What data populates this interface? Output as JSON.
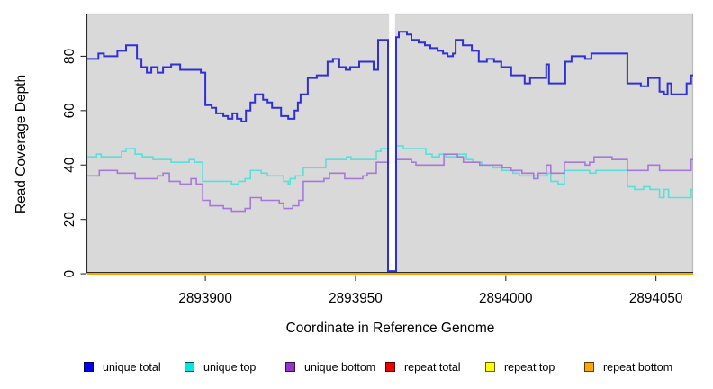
{
  "axes": {
    "ylabel": "Read Coverage Depth",
    "xlabel": "Coordinate in Reference Genome"
  },
  "legend": {
    "items": [
      {
        "label": "unique total",
        "color": "#0000EE"
      },
      {
        "label": "unique top",
        "color": "#00E5E5"
      },
      {
        "label": "unique bottom",
        "color": "#9932CC"
      },
      {
        "label": "repeat total",
        "color": "#EE0000"
      },
      {
        "label": "repeat top",
        "color": "#FFFF00"
      },
      {
        "label": "repeat bottom",
        "color": "#FFA500"
      }
    ]
  },
  "chart_data": {
    "type": "line",
    "subtype": "step-after",
    "title": "",
    "xlabel": "Coordinate in Reference Genome",
    "ylabel": "Read Coverage Depth",
    "xlim": [
      2893860.7,
      2894062.4
    ],
    "ylim": [
      -0.3,
      95.7
    ],
    "x_ticks": [
      2893900,
      2893950,
      2894000,
      2894050
    ],
    "x_tick_labels": [
      "2893900",
      "2893950",
      "2894000",
      "2894050"
    ],
    "y_ticks": [
      0,
      20,
      40,
      60,
      80
    ],
    "y_tick_labels": [
      "0",
      "20",
      "40",
      "60",
      "80"
    ],
    "grid": false,
    "panel_bg": "#d9d9d9",
    "gap_region": {
      "from": 2893960.8,
      "to": 2893963.5,
      "note": "white masked strip, coverage drops to ~0"
    },
    "series": [
      {
        "name": "repeat total",
        "color": "#E00000",
        "width": 2,
        "points": [
          [
            2893860.7,
            0
          ],
          [
            2894062.4,
            0
          ]
        ]
      },
      {
        "name": "repeat top",
        "color": "#FFFF00",
        "width": 2,
        "points": [
          [
            2893860.7,
            0
          ],
          [
            2894062.4,
            0
          ]
        ]
      },
      {
        "name": "repeat bottom",
        "color": "#FFA500",
        "width": 2.2,
        "points": [
          [
            2893860.7,
            0
          ],
          [
            2894062.4,
            0
          ]
        ]
      },
      {
        "name": "unique top",
        "color": "#55E2DA",
        "width": 1.6,
        "points": [
          [
            2893860.7,
            43
          ],
          [
            2893863.8,
            44
          ],
          [
            2893865.3,
            43
          ],
          [
            2893872.1,
            45
          ],
          [
            2893873.6,
            46
          ],
          [
            2893876.6,
            44
          ],
          [
            2893879,
            43
          ],
          [
            2893882.6,
            42
          ],
          [
            2893888.6,
            41
          ],
          [
            2893894.6,
            42
          ],
          [
            2893896.4,
            41
          ],
          [
            2893899.1,
            34
          ],
          [
            2893908.7,
            33
          ],
          [
            2893911.1,
            34
          ],
          [
            2893913.2,
            35
          ],
          [
            2893915,
            38
          ],
          [
            2893918.6,
            37
          ],
          [
            2893920.7,
            36
          ],
          [
            2893926.1,
            34
          ],
          [
            2893927.6,
            33
          ],
          [
            2893928.2,
            35
          ],
          [
            2893930,
            36
          ],
          [
            2893932.6,
            39
          ],
          [
            2893940.1,
            42
          ],
          [
            2893947,
            43
          ],
          [
            2893948.5,
            42
          ],
          [
            2893956.9,
            45
          ],
          [
            2893958.4,
            46
          ],
          [
            2893963.5,
            47
          ],
          [
            2893965.9,
            46
          ],
          [
            2893973.4,
            44
          ],
          [
            2893975.5,
            43
          ],
          [
            2893977.9,
            44
          ],
          [
            2893980,
            43
          ],
          [
            2893983.9,
            44
          ],
          [
            2893986.9,
            42
          ],
          [
            2893989,
            41
          ],
          [
            2893992,
            40
          ],
          [
            2893995.6,
            39
          ],
          [
            2893998.8,
            38
          ],
          [
            2894002.4,
            37
          ],
          [
            2894004.5,
            36
          ],
          [
            2894013.8,
            37
          ],
          [
            2894015,
            34
          ],
          [
            2894017.4,
            33
          ],
          [
            2894019.5,
            38
          ],
          [
            2894027.9,
            37
          ],
          [
            2894030,
            38
          ],
          [
            2894040.5,
            32
          ],
          [
            2894042.9,
            31
          ],
          [
            2894045.9,
            32
          ],
          [
            2894048,
            31
          ],
          [
            2894051.2,
            28
          ],
          [
            2894052.7,
            31
          ],
          [
            2894054.2,
            28
          ],
          [
            2894061.7,
            31
          ]
        ]
      },
      {
        "name": "unique bottom",
        "color": "#A678DC",
        "width": 1.6,
        "points": [
          [
            2893860.7,
            36
          ],
          [
            2893864.7,
            38
          ],
          [
            2893870.7,
            37
          ],
          [
            2893876.6,
            35
          ],
          [
            2893884.1,
            36
          ],
          [
            2893885.9,
            37
          ],
          [
            2893888,
            34
          ],
          [
            2893891.6,
            33
          ],
          [
            2893895.2,
            35
          ],
          [
            2893897,
            33
          ],
          [
            2893899.1,
            27
          ],
          [
            2893901.5,
            25
          ],
          [
            2893906,
            24
          ],
          [
            2893908.7,
            23
          ],
          [
            2893913.2,
            24
          ],
          [
            2893915,
            28
          ],
          [
            2893918.6,
            27
          ],
          [
            2893924.6,
            26
          ],
          [
            2893926.1,
            24
          ],
          [
            2893929.1,
            25
          ],
          [
            2893931.1,
            27
          ],
          [
            2893932.6,
            34
          ],
          [
            2893939.5,
            35
          ],
          [
            2893941.3,
            37
          ],
          [
            2893946.4,
            35
          ],
          [
            2893952.4,
            36
          ],
          [
            2893953.9,
            37
          ],
          [
            2893956.9,
            41
          ],
          [
            2893963.5,
            42
          ],
          [
            2893968.6,
            41
          ],
          [
            2893970.1,
            40
          ],
          [
            2893979.4,
            44
          ],
          [
            2893983.9,
            43
          ],
          [
            2893985.9,
            41
          ],
          [
            2893991.3,
            40
          ],
          [
            2893998.8,
            39
          ],
          [
            2894001.8,
            38
          ],
          [
            2894005.4,
            37
          ],
          [
            2894009.3,
            35
          ],
          [
            2894010.8,
            37
          ],
          [
            2894013.5,
            40
          ],
          [
            2894015,
            37
          ],
          [
            2894019.5,
            41
          ],
          [
            2894026.4,
            40
          ],
          [
            2894027.9,
            41
          ],
          [
            2894029.4,
            43
          ],
          [
            2894035.4,
            42
          ],
          [
            2894040.5,
            38
          ],
          [
            2894047.4,
            40
          ],
          [
            2894051.2,
            38
          ],
          [
            2894061.7,
            42
          ]
        ]
      },
      {
        "name": "unique total",
        "color": "#3030D8",
        "width": 2,
        "points": [
          [
            2893860.7,
            79
          ],
          [
            2893864.4,
            81
          ],
          [
            2893866.2,
            80
          ],
          [
            2893870.7,
            82
          ],
          [
            2893873.6,
            84
          ],
          [
            2893877.2,
            79
          ],
          [
            2893878.7,
            76
          ],
          [
            2893880.5,
            74
          ],
          [
            2893882,
            76
          ],
          [
            2893884.1,
            74
          ],
          [
            2893885.9,
            76
          ],
          [
            2893888.6,
            77
          ],
          [
            2893891.6,
            75
          ],
          [
            2893898.5,
            74
          ],
          [
            2893900,
            62
          ],
          [
            2893902.1,
            61
          ],
          [
            2893903.6,
            59
          ],
          [
            2893906,
            58
          ],
          [
            2893907.5,
            57
          ],
          [
            2893909,
            59
          ],
          [
            2893910.5,
            57
          ],
          [
            2893912,
            56
          ],
          [
            2893913.5,
            60
          ],
          [
            2893915,
            63
          ],
          [
            2893916.5,
            66
          ],
          [
            2893919.2,
            64
          ],
          [
            2893920.7,
            63
          ],
          [
            2893922.2,
            61
          ],
          [
            2893925.2,
            58
          ],
          [
            2893927.6,
            57
          ],
          [
            2893929.7,
            60
          ],
          [
            2893930.8,
            63
          ],
          [
            2893931.7,
            66
          ],
          [
            2893934.1,
            72
          ],
          [
            2893937.1,
            73
          ],
          [
            2893940.7,
            78
          ],
          [
            2893942.5,
            79
          ],
          [
            2893944.6,
            76
          ],
          [
            2893946.7,
            75
          ],
          [
            2893948.2,
            76
          ],
          [
            2893951.2,
            78
          ],
          [
            2893956,
            75
          ],
          [
            2893957.5,
            86
          ],
          [
            2893960.8,
            1
          ],
          [
            2893963.5,
            87
          ],
          [
            2893964.4,
            89
          ],
          [
            2893967.1,
            88
          ],
          [
            2893968.6,
            86
          ],
          [
            2893971,
            85
          ],
          [
            2893973.1,
            84
          ],
          [
            2893974.9,
            83
          ],
          [
            2893977.3,
            82
          ],
          [
            2893979.1,
            81
          ],
          [
            2893980.6,
            80
          ],
          [
            2893982.4,
            81
          ],
          [
            2893983.3,
            86
          ],
          [
            2893985.7,
            84
          ],
          [
            2893988.7,
            82
          ],
          [
            2893991,
            78
          ],
          [
            2893993.7,
            79
          ],
          [
            2893996.1,
            78
          ],
          [
            2893998.5,
            76
          ],
          [
            2894001.8,
            73
          ],
          [
            2894006.3,
            70
          ],
          [
            2894008.1,
            72
          ],
          [
            2894013.5,
            77
          ],
          [
            2894014.4,
            70
          ],
          [
            2894019.8,
            78
          ],
          [
            2894021.9,
            80
          ],
          [
            2894026.4,
            79
          ],
          [
            2894028.5,
            81
          ],
          [
            2894040.5,
            70
          ],
          [
            2894045,
            69
          ],
          [
            2894047.4,
            72
          ],
          [
            2894051.2,
            67
          ],
          [
            2894052.7,
            66
          ],
          [
            2894053.9,
            70
          ],
          [
            2894055.1,
            66
          ],
          [
            2894060.2,
            70
          ],
          [
            2894061.7,
            73
          ]
        ]
      }
    ],
    "legend_entries": [
      "unique total",
      "unique top",
      "unique bottom",
      "repeat total",
      "repeat top",
      "repeat bottom"
    ],
    "legend_position": "bottom"
  }
}
